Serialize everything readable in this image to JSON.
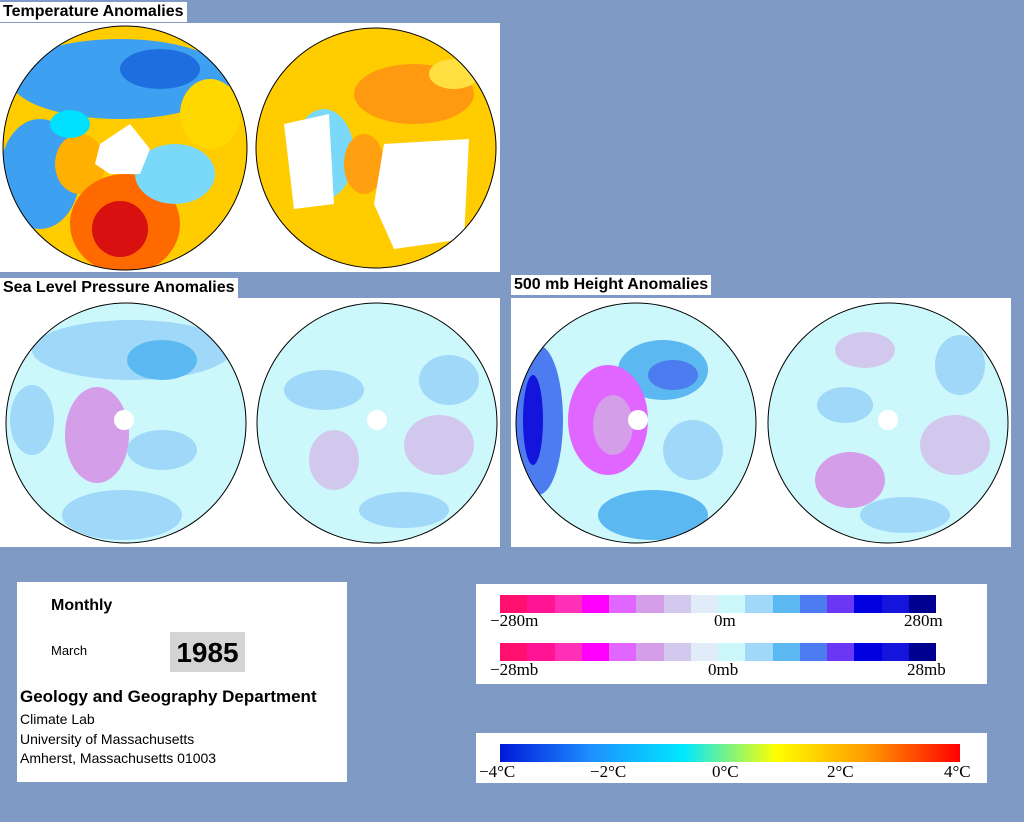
{
  "titles": {
    "temperature": "Temperature Anomalies",
    "slp": "Sea Level Pressure Anomalies",
    "height500": "500 mb Height Anomalies"
  },
  "info": {
    "period": "Monthly",
    "month": "March",
    "year": "1985",
    "department": "Geology and Geography Department",
    "lines": [
      "Climate Lab",
      "University of Massachusetts",
      "Amherst, Massachusetts 01003"
    ]
  },
  "legend_pressure": {
    "colors": [
      "#ff0f6e",
      "#ff1493",
      "#ff30b8",
      "#ff00ff",
      "#e066ff",
      "#d49ee8",
      "#d2c8ee",
      "#e0ecf8",
      "#ccf8fc",
      "#9fd8f8",
      "#5cb8f0",
      "#4c7cf0",
      "#6a38f4",
      "#0000e0",
      "#1414dc",
      "#000090"
    ],
    "height_ticks": [
      "−280m",
      "0m",
      "280m"
    ],
    "slp_ticks": [
      "−28mb",
      "0mb",
      "28mb"
    ]
  },
  "legend_temperature": {
    "gradient": [
      "#0018d8",
      "#1e90ff",
      "#00e8ff",
      "#ffff00",
      "#ff9900",
      "#ff0000"
    ],
    "ticks": [
      "−4°C",
      "−2°C",
      "0°C",
      "2°C",
      "4°C"
    ]
  }
}
